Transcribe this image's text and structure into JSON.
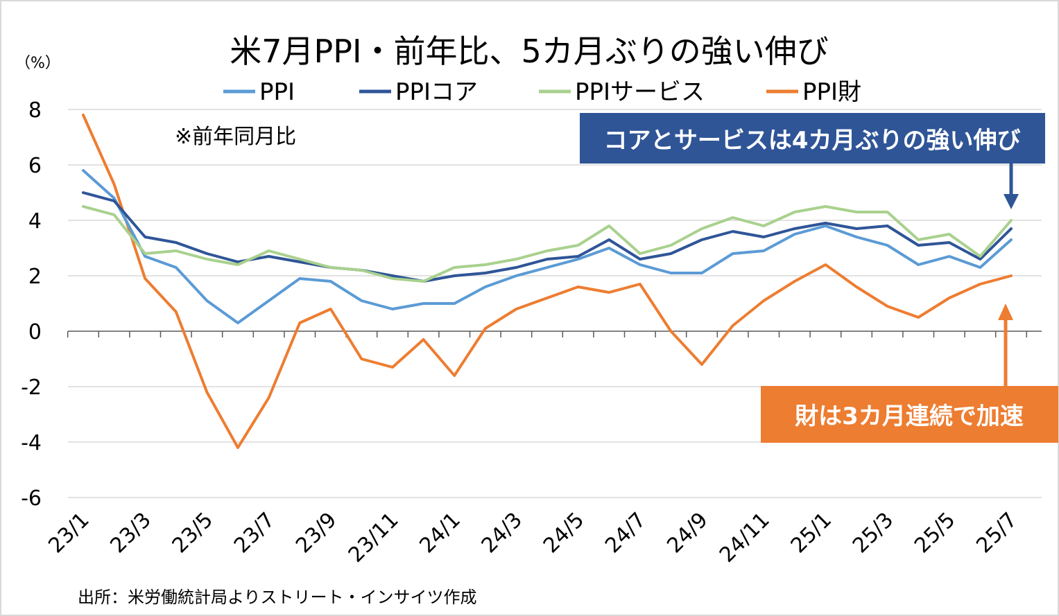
{
  "chart_data": {
    "type": "line",
    "title": "米7月PPI・前年比、5カ月ぶりの強い伸び",
    "unit_label": "（%）",
    "note": "※前年同月比",
    "source": "出所：米労働統計局よりストリート・インサイツ作成",
    "ylim": [
      -6,
      8
    ],
    "yticks": [
      8,
      6,
      4,
      2,
      0,
      -2,
      -4,
      -6
    ],
    "grid": true,
    "legend_position": "top",
    "x": [
      "23/1",
      "23/2",
      "23/3",
      "23/4",
      "23/5",
      "23/6",
      "23/7",
      "23/8",
      "23/9",
      "23/10",
      "23/11",
      "23/12",
      "24/1",
      "24/2",
      "24/3",
      "24/4",
      "24/5",
      "24/6",
      "24/7",
      "24/8",
      "24/9",
      "24/10",
      "24/11",
      "24/12",
      "25/1",
      "25/2",
      "25/3",
      "25/4",
      "25/5",
      "25/6",
      "25/7"
    ],
    "x_tick_labels": [
      "23/1",
      "",
      "23/3",
      "",
      "23/5",
      "",
      "23/7",
      "",
      "23/9",
      "",
      "23/11",
      "",
      "24/1",
      "",
      "24/3",
      "",
      "24/5",
      "",
      "24/7",
      "",
      "24/9",
      "",
      "24/11",
      "",
      "25/1",
      "",
      "25/3",
      "",
      "25/5",
      "",
      "25/7"
    ],
    "series": [
      {
        "name": "PPI",
        "color": "#5b9bd5",
        "values": [
          5.8,
          4.8,
          2.7,
          2.3,
          1.1,
          0.3,
          1.1,
          1.9,
          1.8,
          1.1,
          0.8,
          1.0,
          1.0,
          1.6,
          2.0,
          2.3,
          2.6,
          3.0,
          2.4,
          2.1,
          2.1,
          2.8,
          2.9,
          3.5,
          3.8,
          3.4,
          3.1,
          2.4,
          2.7,
          2.3,
          3.3
        ]
      },
      {
        "name": "PPIコア",
        "color": "#2f5597",
        "values": [
          5.0,
          4.7,
          3.4,
          3.2,
          2.8,
          2.5,
          2.7,
          2.5,
          2.3,
          2.2,
          2.0,
          1.8,
          2.0,
          2.1,
          2.3,
          2.6,
          2.7,
          3.3,
          2.6,
          2.8,
          3.3,
          3.6,
          3.4,
          3.7,
          3.9,
          3.7,
          3.8,
          3.1,
          3.2,
          2.6,
          3.7
        ]
      },
      {
        "name": "PPIサービス",
        "color": "#a9d18e",
        "values": [
          4.5,
          4.2,
          2.8,
          2.9,
          2.6,
          2.4,
          2.9,
          2.6,
          2.3,
          2.2,
          1.9,
          1.8,
          2.3,
          2.4,
          2.6,
          2.9,
          3.1,
          3.8,
          2.8,
          3.1,
          3.7,
          4.1,
          3.8,
          4.3,
          4.5,
          4.3,
          4.3,
          3.3,
          3.5,
          2.7,
          4.0
        ]
      },
      {
        "name": "PPI財",
        "color": "#ed7d31",
        "values": [
          7.8,
          5.3,
          1.9,
          0.7,
          -2.2,
          -4.2,
          -2.4,
          0.3,
          0.8,
          -1.0,
          -1.3,
          -0.3,
          -1.6,
          0.1,
          0.8,
          1.2,
          1.6,
          1.4,
          1.7,
          0.0,
          -1.2,
          0.2,
          1.1,
          1.8,
          2.4,
          1.6,
          0.9,
          0.5,
          1.2,
          1.7,
          2.0
        ]
      }
    ],
    "annotations": [
      {
        "text": "コアとサービスは4カ月ぶりの強い伸び",
        "fill": "#2f5597",
        "text_color": "#ffffff",
        "points_to": "PPIサービス"
      },
      {
        "text": "財は3カ月連続で加速",
        "fill": "#ed7d31",
        "text_color": "#ffffff",
        "points_to": "PPI財"
      }
    ]
  }
}
